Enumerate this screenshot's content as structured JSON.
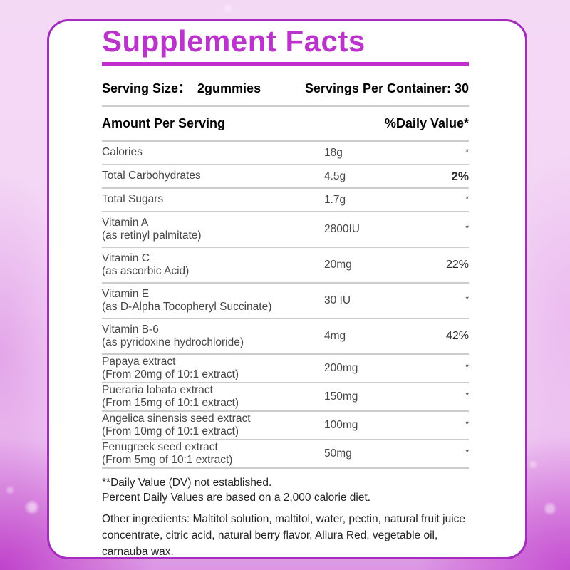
{
  "title": "Supplement Facts",
  "serving": {
    "size_label": "Serving Size：",
    "size_value": "2gummies",
    "per_container_label": "Servings Per Container:",
    "per_container_value": "30"
  },
  "table": {
    "header": {
      "amount": "Amount Per Serving",
      "dv": "%Daily Value*"
    },
    "rows": [
      {
        "name": "Calories",
        "sub": "",
        "amount": "18g",
        "dv": "*",
        "dv_bold": false
      },
      {
        "name": "Total Carbohydrates",
        "sub": "",
        "amount": "4.5g",
        "dv": "2%",
        "dv_bold": true
      },
      {
        "name": "Total Sugars",
        "sub": "",
        "amount": "1.7g",
        "dv": "*",
        "dv_bold": false
      },
      {
        "name": "Vitamin A",
        "sub": "(as retinyl palmitate)",
        "amount": "2800IU",
        "dv": "*",
        "dv_bold": false
      },
      {
        "name": "Vitamin C",
        "sub": "(as ascorbic Acid)",
        "amount": "20mg",
        "dv": "22%",
        "dv_bold": false
      },
      {
        "name": "Vitamin E",
        "sub": "(as D-Alpha Tocopheryl Succinate)",
        "amount": "30 IU",
        "dv": "*",
        "dv_bold": false
      },
      {
        "name": "Vitamin B-6",
        "sub": "(as pyridoxine hydrochloride)",
        "amount": "4mg",
        "dv": "42%",
        "dv_bold": false
      },
      {
        "name": "Papaya extract",
        "sub": "(From 20mg of 10:1 extract)",
        "amount": "200mg",
        "dv": "*",
        "dv_bold": false
      },
      {
        "name": "Pueraria lobata extract",
        "sub": "(From 15mg of 10:1 extract)",
        "amount": "150mg",
        "dv": "*",
        "dv_bold": false
      },
      {
        "name": "Angelica sinensis seed extract",
        "sub": "(From 10mg of 10:1 extract)",
        "amount": "100mg",
        "dv": "*",
        "dv_bold": false
      },
      {
        "name": "Fenugreek seed extract",
        "sub": "(From 5mg of 10:1 extract)",
        "amount": "50mg",
        "dv": "*",
        "dv_bold": false
      }
    ]
  },
  "footnotes": {
    "dv_note": "**Daily Value (DV) not established.",
    "percent_note": "Percent Daily Values are based on a 2,000 calorie diet.",
    "other_ingredients": "Other ingredients: Maltitol solution, maltitol, water, pectin, natural fruit juice concentrate, citric acid, natural berry flavor, Allura Red, vegetable oil, carnauba wax."
  },
  "colors": {
    "title": "#bb33cc",
    "accent_line": "#c12ccd",
    "panel_border": "#a32cbf",
    "divider": "#cccccc",
    "row_text": "#474747",
    "header_text": "#000000",
    "bg_light": "#f4d9f5",
    "bg_dark": "#ba34c6"
  }
}
